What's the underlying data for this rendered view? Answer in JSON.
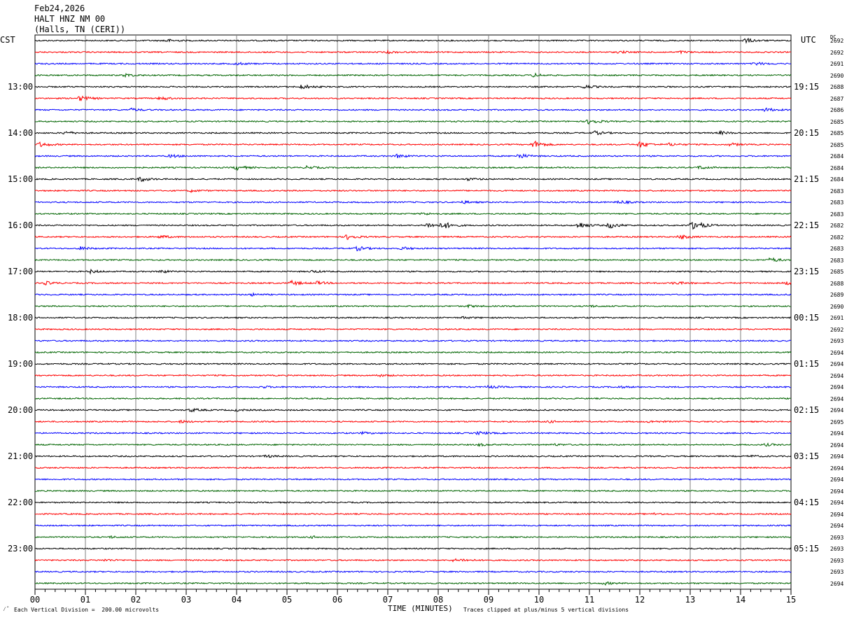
{
  "header": {
    "date": "Feb24,2026",
    "station": "HALT HNZ NM 00",
    "location": "(Halls, TN (CERI))"
  },
  "left_zone": "CST",
  "right_zone": "UTC",
  "dc_header": "DC",
  "footer": {
    "scale_note": "Each Vertical Division =  200.00 microvolts",
    "clip_note": "Traces clipped at plus/minus 5 vertical divisions",
    "corner_mark": "⁄ˆ"
  },
  "colors": {
    "trace_cycle": [
      "#000000",
      "#ff0000",
      "#0000ff",
      "#006400"
    ],
    "grid": "#808080"
  },
  "chart_data": {
    "type": "line",
    "title": "HALT HNZ NM 00",
    "xlabel": "TIME (MINUTES)",
    "x_ticks": [
      "00",
      "01",
      "02",
      "03",
      "04",
      "05",
      "06",
      "07",
      "08",
      "09",
      "10",
      "11",
      "12",
      "13",
      "14",
      "15"
    ],
    "xlim": [
      0,
      15
    ],
    "left_hour_labels": [
      "13:00",
      "14:00",
      "15:00",
      "16:00",
      "17:00",
      "18:00",
      "19:00",
      "20:00",
      "21:00",
      "22:00",
      "23:00"
    ],
    "right_hour_labels": [
      "19:15",
      "20:15",
      "21:15",
      "22:15",
      "23:15",
      "00:15",
      "01:15",
      "02:15",
      "03:15",
      "04:15",
      "05:15"
    ],
    "dc_values": [
      "2692",
      "2692",
      "2691",
      "2690",
      "2688",
      "2687",
      "2686",
      "2685",
      "2685",
      "2685",
      "2684",
      "2684",
      "2684",
      "2683",
      "2683",
      "2683",
      "2682",
      "2682",
      "2683",
      "2683",
      "2685",
      "2688",
      "2689",
      "2690",
      "2691",
      "2692",
      "2693",
      "2694",
      "2694",
      "2694",
      "2694",
      "2694",
      "2694",
      "2695",
      "2694",
      "2694",
      "2694",
      "2694",
      "2694",
      "2694",
      "2694",
      "2694",
      "2694",
      "2693",
      "2693",
      "2693",
      "2693",
      "2694"
    ],
    "events": [
      [
        [
          2.6,
          2
        ],
        [
          14.1,
          3
        ]
      ],
      [
        [
          7.0,
          1.5
        ],
        [
          11.6,
          1.5
        ],
        [
          12.8,
          1.5
        ]
      ],
      [
        [
          4.0,
          1.5
        ],
        [
          14.3,
          2
        ]
      ],
      [
        [
          1.8,
          2.2
        ],
        [
          9.9,
          2.2
        ]
      ],
      [
        [
          5.3,
          3
        ],
        [
          10.9,
          2.5
        ]
      ],
      [
        [
          0.9,
          3.5
        ],
        [
          2.5,
          2.2
        ]
      ],
      [
        [
          1.9,
          2
        ],
        [
          14.5,
          2.5
        ]
      ],
      [
        [
          11.0,
          4
        ]
      ],
      [
        [
          0.6,
          2
        ],
        [
          11.1,
          2.5
        ],
        [
          13.6,
          2
        ]
      ],
      [
        [
          0.1,
          3
        ],
        [
          9.9,
          5
        ],
        [
          12.0,
          4
        ],
        [
          12.6,
          2
        ],
        [
          13.8,
          2
        ]
      ],
      [
        [
          2.7,
          2
        ],
        [
          7.2,
          2.5
        ],
        [
          9.6,
          3.5
        ]
      ],
      [
        [
          4.0,
          3
        ],
        [
          5.4,
          2
        ],
        [
          13.2,
          2
        ]
      ],
      [
        [
          2.1,
          3
        ],
        [
          8.6,
          1.5
        ]
      ],
      [
        [
          3.1,
          1.5
        ]
      ],
      [
        [
          8.5,
          1.5
        ],
        [
          11.6,
          2.2
        ]
      ],
      [
        [
          7.7,
          1.5
        ]
      ],
      [
        [
          7.8,
          3.5
        ],
        [
          8.1,
          4.5
        ],
        [
          10.8,
          4.5
        ],
        [
          11.4,
          4
        ],
        [
          13.0,
          3
        ],
        [
          13.1,
          5
        ]
      ],
      [
        [
          2.5,
          2
        ],
        [
          6.2,
          3.5
        ],
        [
          12.8,
          3
        ]
      ],
      [
        [
          0.9,
          2.2
        ],
        [
          6.4,
          3
        ],
        [
          7.3,
          2
        ]
      ],
      [
        [
          14.6,
          3
        ]
      ],
      [
        [
          1.1,
          2.2
        ],
        [
          2.5,
          2
        ],
        [
          5.5,
          1.5
        ]
      ],
      [
        [
          0.2,
          2.2
        ],
        [
          5.1,
          3
        ],
        [
          5.6,
          2
        ],
        [
          12.7,
          2
        ],
        [
          14.9,
          2
        ]
      ],
      [
        [
          4.3,
          1.5
        ]
      ],
      [
        [
          8.6,
          1.5
        ],
        [
          11.0,
          1.2
        ]
      ],
      [
        [
          8.5,
          1.2
        ]
      ],
      [],
      [],
      [],
      [],
      [
        [
          6.8,
          1.5
        ]
      ],
      [
        [
          4.5,
          1.2
        ],
        [
          9.0,
          1.8
        ],
        [
          11.6,
          1.2
        ]
      ],
      [],
      [
        [
          3.1,
          2.2
        ],
        [
          4.0,
          1.2
        ]
      ],
      [
        [
          2.9,
          1.5
        ],
        [
          10.2,
          1.2
        ],
        [
          12.2,
          1.2
        ]
      ],
      [
        [
          6.5,
          1.2
        ],
        [
          8.8,
          2
        ]
      ],
      [
        [
          8.8,
          1.5
        ],
        [
          10.3,
          1.2
        ],
        [
          14.5,
          1.5
        ]
      ],
      [
        [
          4.6,
          1.5
        ],
        [
          14.2,
          1.2
        ]
      ],
      [],
      [],
      [],
      [],
      [
        [
          12.3,
          1.2
        ]
      ],
      [],
      [
        [
          1.5,
          1.2
        ],
        [
          5.5,
          1.2
        ]
      ],
      [],
      [
        [
          1.4,
          1.2
        ],
        [
          8.3,
          1.5
        ],
        [
          8.5,
          1.2
        ]
      ],
      [],
      [
        [
          11.3,
          1.8
        ]
      ]
    ]
  }
}
